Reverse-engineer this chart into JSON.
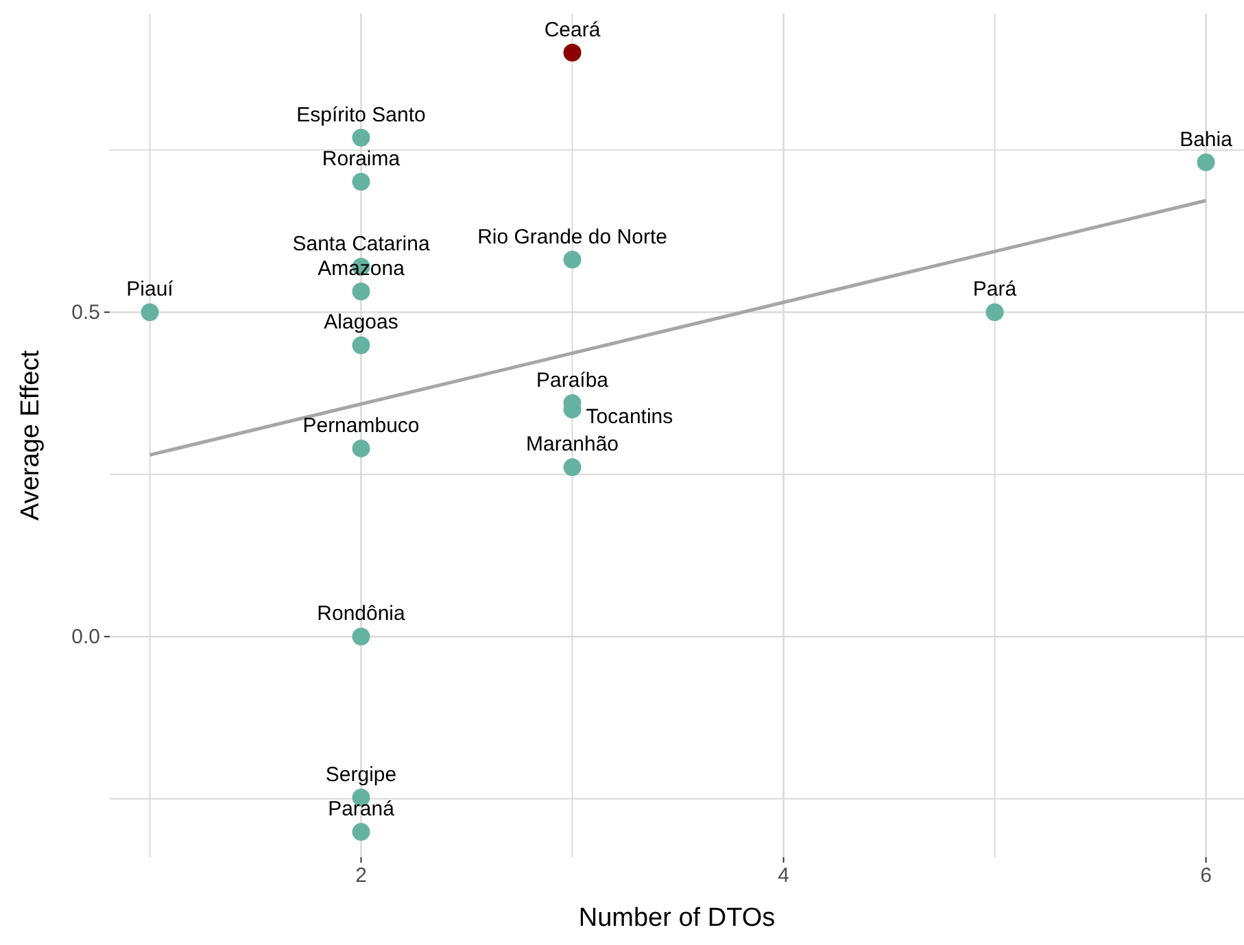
{
  "chart_data": {
    "type": "scatter",
    "xlabel": "Number of DTOs",
    "ylabel": "Average Effect",
    "xlim": [
      0.81,
      6.18
    ],
    "ylim": [
      -0.34,
      0.96
    ],
    "xticks": [
      {
        "value": 1,
        "label": null
      },
      2,
      {
        "value": 3,
        "label": null
      },
      4,
      {
        "value": 5,
        "label": null
      },
      6
    ],
    "yticks": [
      {
        "value": -0.25,
        "label": null
      },
      {
        "value": 0,
        "label": "0.0"
      },
      {
        "value": 0.25,
        "label": null
      },
      {
        "value": 0.5,
        "label": "0.5"
      },
      {
        "value": 0.75,
        "label": null
      }
    ],
    "grid": true,
    "marker": "circle",
    "series": [
      {
        "x": [
          3,
          2,
          2,
          2,
          2,
          2,
          2,
          2,
          2,
          2,
          1,
          3,
          3,
          3,
          3,
          5,
          6
        ],
        "values": [
          0.9,
          0.769,
          0.701,
          0.57,
          0.532,
          0.449,
          0.29,
          0,
          -0.248,
          -0.301,
          0.5,
          0.581,
          0.36,
          0.35,
          0.261,
          0.5,
          0.731
        ],
        "colors": [
          "#8b0000",
          "#66b2a0",
          "#66b2a0",
          "#66b2a0",
          "#66b2a0",
          "#66b2a0",
          "#66b2a0",
          "#66b2a0",
          "#66b2a0",
          "#66b2a0",
          "#66b2a0",
          "#66b2a0",
          "#66b2a0",
          "#66b2a0",
          "#66b2a0",
          "#66b2a0",
          "#66b2a0"
        ]
      },
      {
        "type": "line",
        "x": [
          1,
          6
        ],
        "values": [
          0.28,
          0.672
        ],
        "color": "#a6a6a6",
        "marker": "none"
      }
    ],
    "annotations": [
      {
        "text": "Ceará",
        "x": 3,
        "y": 0.9
      },
      {
        "text": "Espírito Santo",
        "x": 2,
        "y": 0.769
      },
      {
        "text": "Roraima",
        "x": 2,
        "y": 0.701
      },
      {
        "text": "Santa Catarina",
        "x": 2,
        "y": 0.57
      },
      {
        "text": "Amazona",
        "x": 2,
        "y": 0.532
      },
      {
        "text": "Alagoas",
        "x": 2,
        "y": 0.449
      },
      {
        "text": "Pernambuco",
        "x": 2,
        "y": 0.29
      },
      {
        "text": "Rondônia",
        "x": 2,
        "y": 0
      },
      {
        "text": "Sergipe",
        "x": 2,
        "y": -0.248
      },
      {
        "text": "Paraná",
        "x": 2,
        "y": -0.301
      },
      {
        "text": "Piauí",
        "x": 1,
        "y": 0.5
      },
      {
        "text": "Rio Grande do Norte",
        "x": 3,
        "y": 0.581
      },
      {
        "text": "Paraíba",
        "x": 3,
        "y": 0.36
      },
      {
        "text": "Tocantins",
        "x": 3,
        "y": 0.35
      },
      {
        "text": "Maranhão",
        "x": 3,
        "y": 0.261
      },
      {
        "text": "Pará",
        "x": 5,
        "y": 0.5
      },
      {
        "text": "Bahia",
        "x": 6,
        "y": 0.731
      }
    ]
  }
}
